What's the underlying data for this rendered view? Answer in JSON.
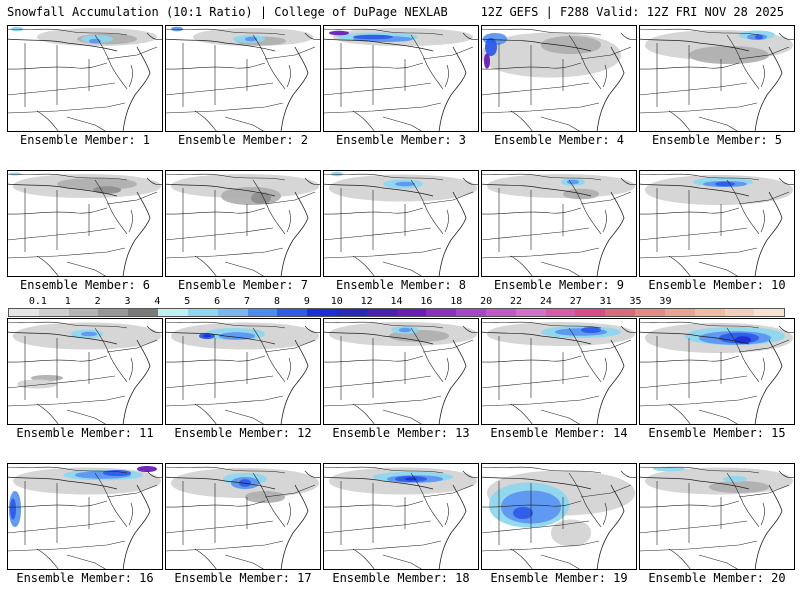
{
  "header": {
    "left": "Snowfall Accumulation (10:1 Ratio) | College of DuPage NEXLAB",
    "right": "12Z GEFS | F288 Valid: 12Z FRI NOV 28 2025"
  },
  "legend": {
    "ticks": [
      "0.1",
      "1",
      "2",
      "3",
      "4",
      "5",
      "6",
      "7",
      "8",
      "9",
      "10",
      "12",
      "14",
      "16",
      "18",
      "20",
      "22",
      "24",
      "27",
      "31",
      "35",
      "39"
    ],
    "colors": [
      "#e6e6e6",
      "#cfcfcf",
      "#b4b4b4",
      "#979797",
      "#7a7a7a",
      "#bff0f2",
      "#8fd7f0",
      "#78b7f0",
      "#4a8cf0",
      "#2e5ce8",
      "#1a2fd8",
      "#2828b8",
      "#4a20b0",
      "#6a1fb4",
      "#8a30c0",
      "#a545c8",
      "#c058c8",
      "#d070c8",
      "#d85aa8",
      "#d84a88",
      "#d86a7a",
      "#e28a84",
      "#e8a48e",
      "#f0bca4",
      "#f4d0bc",
      "#f8e2d2"
    ]
  },
  "panels": [
    {
      "label": "Ensemble Member: 1"
    },
    {
      "label": "Ensemble Member: 2"
    },
    {
      "label": "Ensemble Member: 3"
    },
    {
      "label": "Ensemble Member: 4"
    },
    {
      "label": "Ensemble Member: 5"
    },
    {
      "label": "Ensemble Member: 6"
    },
    {
      "label": "Ensemble Member: 7"
    },
    {
      "label": "Ensemble Member: 8"
    },
    {
      "label": "Ensemble Member: 9"
    },
    {
      "label": "Ensemble Member: 10"
    },
    {
      "label": "Ensemble Member: 11"
    },
    {
      "label": "Ensemble Member: 12"
    },
    {
      "label": "Ensemble Member: 13"
    },
    {
      "label": "Ensemble Member: 14"
    },
    {
      "label": "Ensemble Member: 15"
    },
    {
      "label": "Ensemble Member: 16"
    },
    {
      "label": "Ensemble Member: 17"
    },
    {
      "label": "Ensemble Member: 18"
    },
    {
      "label": "Ensemble Member: 19"
    },
    {
      "label": "Ensemble Member: 20"
    }
  ]
}
